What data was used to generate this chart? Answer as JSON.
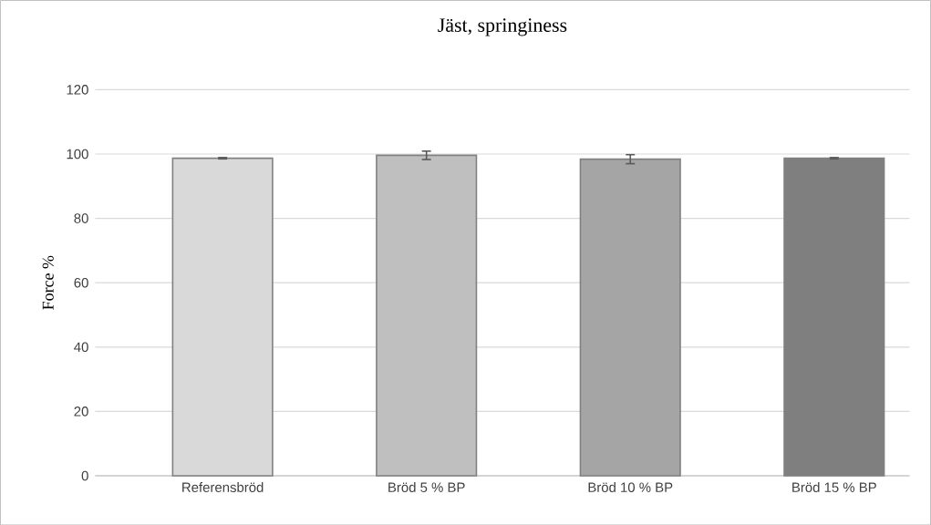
{
  "chart_data": {
    "type": "bar",
    "title": "Jäst, springiness",
    "ylabel": "Force %",
    "categories": [
      "Referensbröd",
      "Bröd 5 % BP",
      "Bröd 10 % BP",
      "Bröd 15 % BP"
    ],
    "values": [
      98.7,
      99.6,
      98.4,
      98.7
    ],
    "errors": [
      0.2,
      1.3,
      1.4,
      0.2
    ],
    "colors": [
      "#d9d9d9",
      "#bfbfbf",
      "#a5a5a5",
      "#7f7f7f"
    ],
    "ylim": [
      0,
      120
    ],
    "yticks": [
      0,
      20,
      40,
      60,
      80,
      100,
      120
    ],
    "grid": "y"
  }
}
